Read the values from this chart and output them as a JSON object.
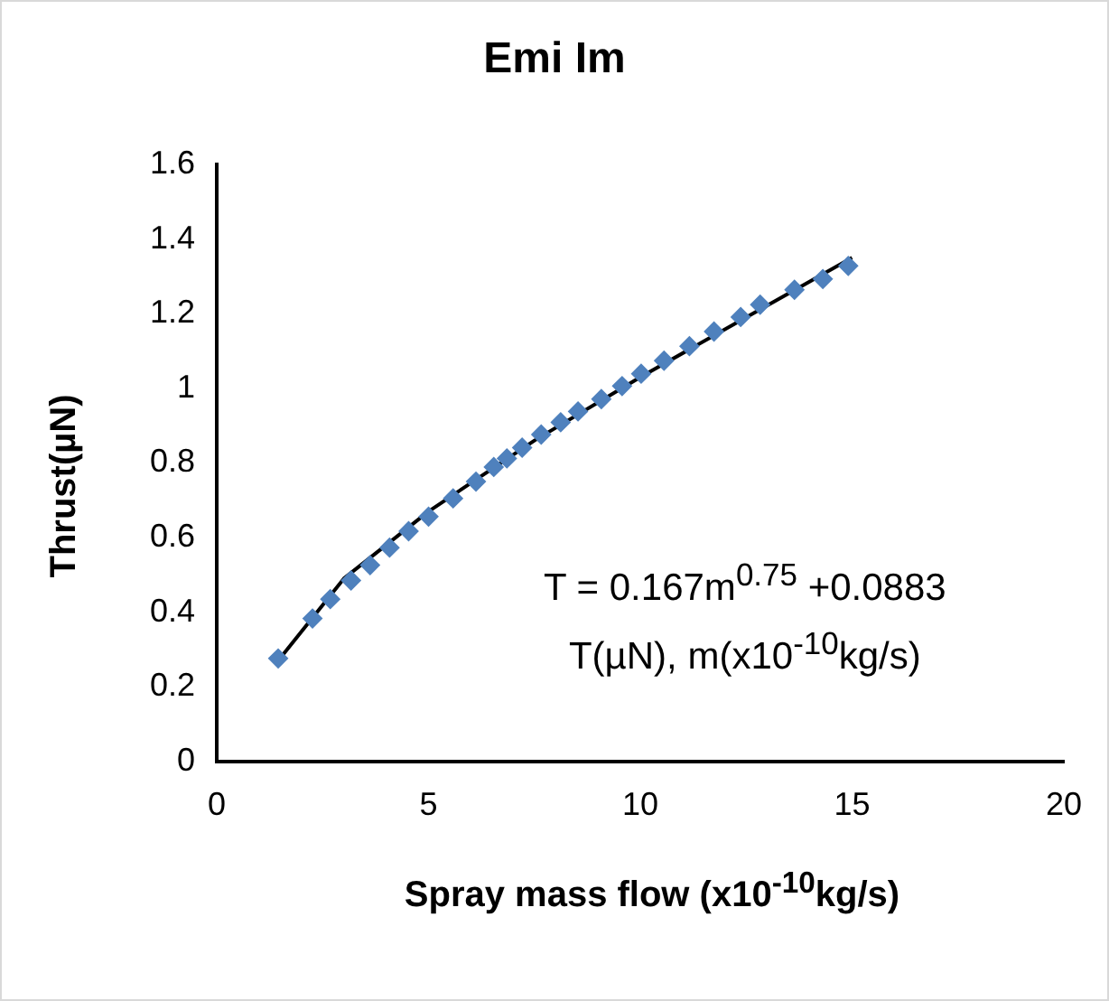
{
  "chart_data": {
    "type": "scatter",
    "title": "Emi Im",
    "xlabel": "Spray mass flow (x10$^{-10}$kg/s)",
    "ylabel": "Thrust(µN)",
    "xlim": [
      0,
      20
    ],
    "xticks": [
      0,
      5,
      10,
      15,
      20
    ],
    "ylim": [
      0,
      1.6
    ],
    "yticks": [
      0,
      0.2,
      0.4,
      0.6,
      0.8,
      1,
      1.2,
      1.4,
      1.6
    ],
    "grid": false,
    "legend": false,
    "marker": "diamond",
    "annotations": [
      "T = 0.167m$^{0.75}$  +0.0883",
      "T(µN), m(x10$^{-10}$kg/s)"
    ],
    "series": [
      {
        "type": "scatter",
        "color": "#4f81bd",
        "x": [
          1.45,
          2.26,
          2.68,
          3.17,
          3.62,
          4.08,
          4.53,
          5.0,
          5.58,
          6.12,
          6.54,
          6.85,
          7.21,
          7.66,
          8.12,
          8.53,
          9.08,
          9.57,
          10.02,
          10.56,
          11.16,
          11.74,
          12.37,
          12.83,
          13.64,
          14.31,
          14.91
        ],
        "values": [
          0.276,
          0.383,
          0.435,
          0.485,
          0.526,
          0.573,
          0.617,
          0.656,
          0.705,
          0.75,
          0.789,
          0.812,
          0.841,
          0.876,
          0.909,
          0.938,
          0.971,
          1.006,
          1.039,
          1.074,
          1.113,
          1.152,
          1.191,
          1.224,
          1.264,
          1.293,
          1.328
        ]
      },
      {
        "type": "line",
        "color": "#000000",
        "marker": "none",
        "line_style": "solid",
        "x": [
          1.45,
          3,
          5,
          7.5,
          10,
          12.5,
          15
        ],
        "values": [
          0.27,
          0.49,
          0.67,
          0.86,
          1.03,
          1.19,
          1.35
        ]
      }
    ]
  }
}
